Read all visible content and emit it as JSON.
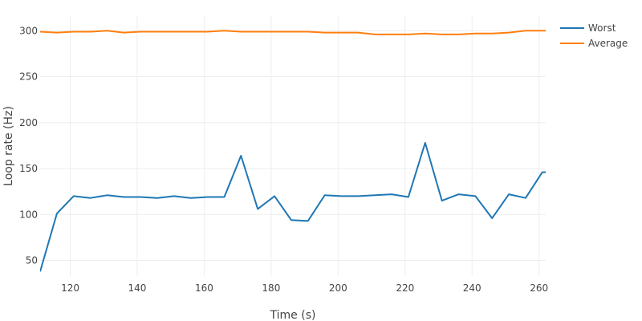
{
  "chart_data": {
    "type": "line",
    "title": "",
    "xlabel": "Time (s)",
    "ylabel": "Loop rate (Hz)",
    "xlim": [
      111,
      262
    ],
    "ylim": [
      33,
      316
    ],
    "xticks": [
      120,
      140,
      160,
      180,
      200,
      220,
      240,
      260
    ],
    "yticks": [
      50,
      100,
      150,
      200,
      250,
      300
    ],
    "grid": true,
    "legend": {
      "placement": "top-right",
      "entries": [
        "Worst",
        "Average"
      ]
    },
    "x": [
      111,
      116,
      121,
      126,
      131,
      136,
      141,
      146,
      151,
      156,
      161,
      166,
      171,
      176,
      181,
      186,
      191,
      196,
      201,
      206,
      211,
      216,
      221,
      226,
      231,
      236,
      241,
      246,
      251,
      256,
      261,
      262
    ],
    "series": [
      {
        "name": "Worst",
        "color": "#1f77b4",
        "values": [
          38,
          101,
          120,
          118,
          121,
          119,
          119,
          118,
          120,
          118,
          119,
          119,
          164,
          106,
          120,
          94,
          93,
          121,
          120,
          120,
          121,
          122,
          119,
          178,
          115,
          122,
          120,
          96,
          122,
          118,
          146,
          146
        ]
      },
      {
        "name": "Average",
        "color": "#ff7f0e",
        "values": [
          299,
          298,
          299,
          299,
          300,
          298,
          299,
          299,
          299,
          299,
          299,
          300,
          299,
          299,
          299,
          299,
          299,
          298,
          298,
          298,
          296,
          296,
          296,
          297,
          296,
          296,
          297,
          297,
          298,
          300,
          300,
          300
        ]
      }
    ]
  }
}
